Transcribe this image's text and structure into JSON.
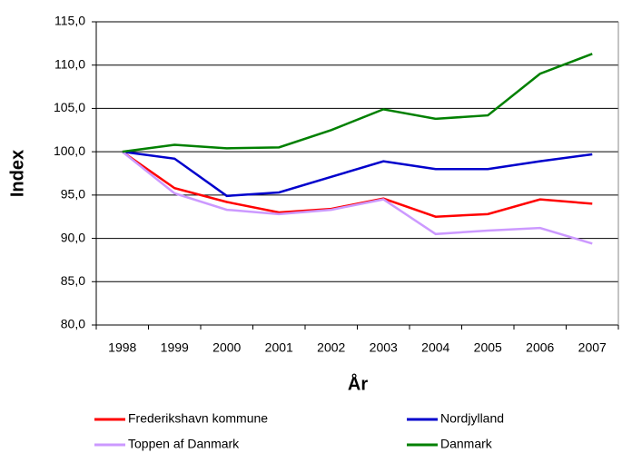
{
  "chart_data": {
    "type": "line",
    "x_label": "År",
    "y_label": "Index",
    "categories": [
      "1998",
      "1999",
      "2000",
      "2001",
      "2002",
      "2003",
      "2004",
      "2005",
      "2006",
      "2007"
    ],
    "series": [
      {
        "name": "Frederikshavn kommune",
        "color": "#ff0000",
        "values": [
          100,
          95.8,
          94.2,
          93.0,
          93.4,
          94.6,
          92.5,
          92.8,
          94.5,
          94.0
        ]
      },
      {
        "name": "Nordjylland",
        "color": "#0000cc",
        "values": [
          100,
          99.2,
          94.9,
          95.3,
          97.1,
          98.9,
          98.0,
          98.0,
          98.9,
          99.7
        ]
      },
      {
        "name": "Toppen af Danmark",
        "color": "#cc99ff",
        "values": [
          100,
          95.2,
          93.3,
          92.8,
          93.3,
          94.5,
          90.5,
          90.9,
          91.2,
          89.4
        ]
      },
      {
        "name": "Danmark",
        "color": "#008000",
        "values": [
          100,
          100.8,
          100.4,
          100.5,
          102.5,
          104.9,
          103.8,
          104.2,
          109.0,
          111.3
        ]
      }
    ],
    "ylim": [
      80,
      115
    ],
    "yticks": [
      {
        "value": 80,
        "label": "80,0"
      },
      {
        "value": 85,
        "label": "85,0"
      },
      {
        "value": 90,
        "label": "90,0"
      },
      {
        "value": 95,
        "label": "95,0"
      },
      {
        "value": 100,
        "label": "100,0"
      },
      {
        "value": 105,
        "label": "105,0"
      },
      {
        "value": 110,
        "label": "110,0"
      },
      {
        "value": 115,
        "label": "115,0"
      }
    ],
    "grid": true
  }
}
